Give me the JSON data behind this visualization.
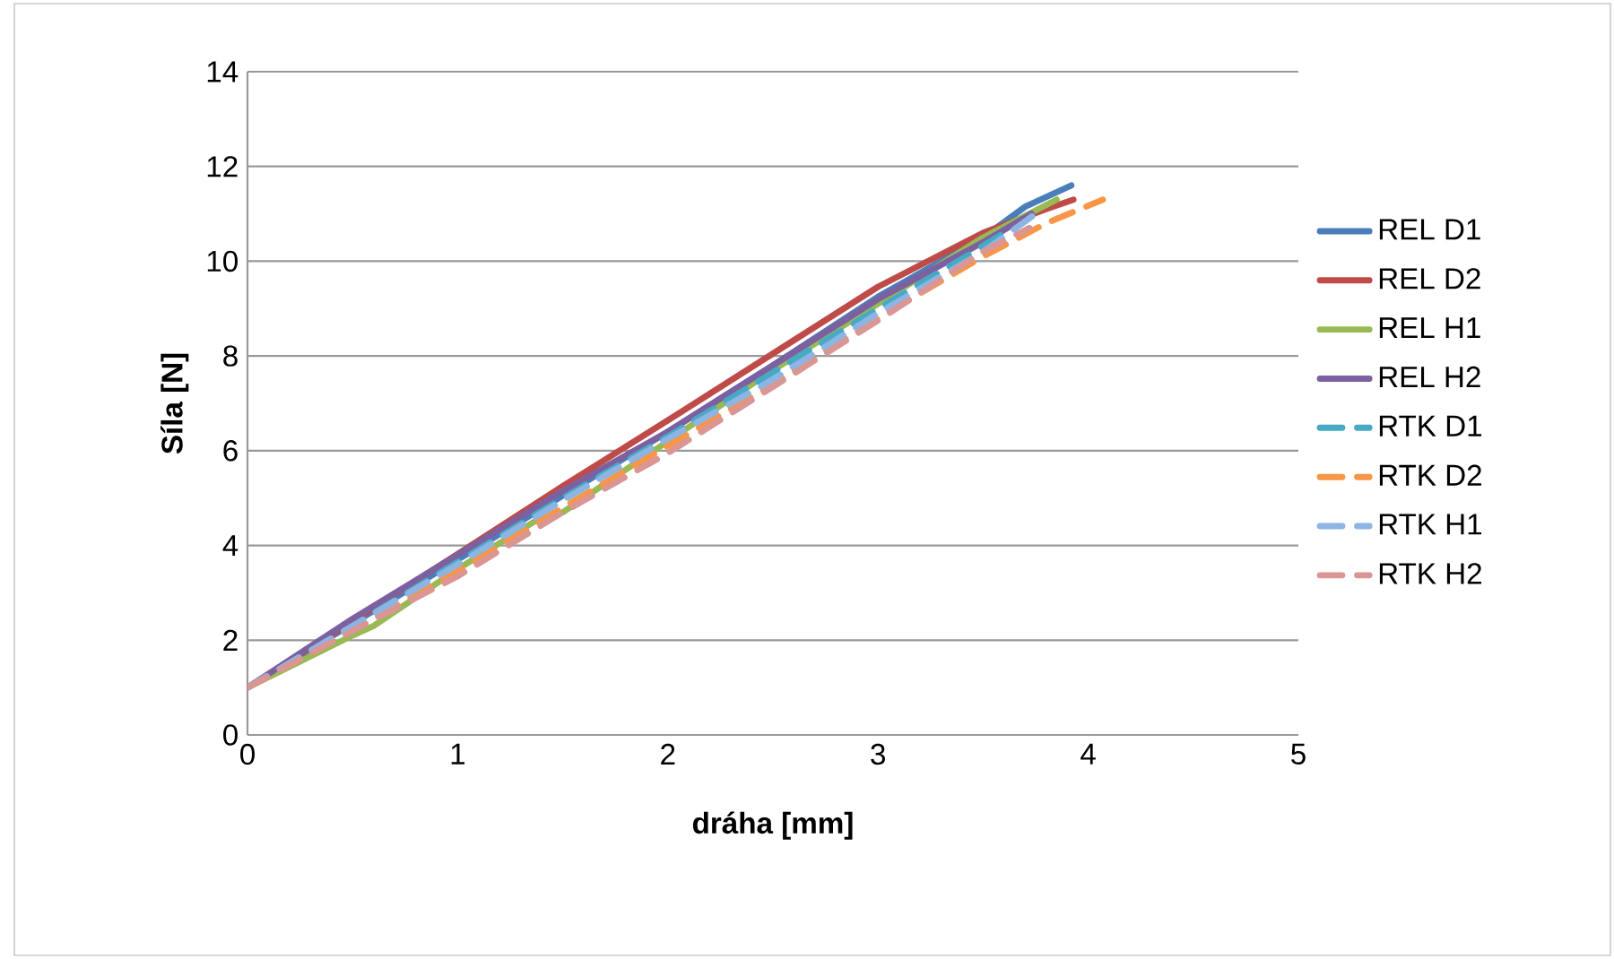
{
  "chart_data": {
    "type": "line",
    "xlabel": "dráha [mm]",
    "ylabel": "Síla [N]",
    "xlim": [
      0,
      5
    ],
    "ylim": [
      0,
      14
    ],
    "xticks": [
      0,
      1,
      2,
      3,
      4,
      5
    ],
    "yticks": [
      0,
      2,
      4,
      6,
      8,
      10,
      12,
      14
    ],
    "grid": "y",
    "legend": "right",
    "marker": "none",
    "series": [
      {
        "name": "REL D1",
        "color": "#4a7ebb",
        "line_style": "solid",
        "x": [
          0,
          0.5,
          1,
          1.5,
          2,
          2.5,
          3,
          3.5,
          3.7,
          3.92
        ],
        "values": [
          1,
          2.35,
          3.7,
          5.05,
          6.4,
          7.8,
          9.25,
          10.5,
          11.15,
          11.6
        ]
      },
      {
        "name": "REL D2",
        "color": "#be4b48",
        "line_style": "solid",
        "x": [
          0,
          0.5,
          1,
          1.5,
          2,
          2.5,
          3,
          3.5,
          3.8,
          3.93
        ],
        "values": [
          1,
          2.4,
          3.82,
          5.25,
          6.64,
          8.05,
          9.46,
          10.6,
          11.1,
          11.3
        ]
      },
      {
        "name": "REL H1",
        "color": "#98b954",
        "line_style": "solid",
        "x": [
          0,
          0.5,
          0.6,
          1,
          1.4,
          1.5,
          2,
          2.5,
          3,
          3.5,
          3.85
        ],
        "values": [
          1,
          2.1,
          2.3,
          3.5,
          4.6,
          4.7,
          6.2,
          7.7,
          9.1,
          10.5,
          11.3
        ]
      },
      {
        "name": "REL H2",
        "color": "#7d60a0",
        "line_style": "solid",
        "x": [
          0,
          0.5,
          1,
          1.5,
          2,
          2.5,
          3,
          3.5,
          3.73
        ],
        "values": [
          1,
          2.45,
          3.8,
          5.15,
          6.4,
          7.8,
          9.2,
          10.4,
          11.0
        ]
      },
      {
        "name": "RTK D1",
        "color": "#46aac5",
        "line_style": "dashed",
        "x": [
          0,
          0.5,
          1,
          1.5,
          2,
          2.5,
          3,
          3.4,
          3.6
        ],
        "values": [
          1,
          2.3,
          3.65,
          5.0,
          6.3,
          7.65,
          9.0,
          10.05,
          10.6
        ]
      },
      {
        "name": "RTK D2",
        "color": "#f79646",
        "line_style": "dashed",
        "x": [
          0,
          0.5,
          1,
          1.5,
          2,
          2.5,
          3,
          3.5,
          3.8,
          4.07
        ],
        "values": [
          1,
          2.2,
          3.45,
          4.8,
          6.1,
          7.4,
          8.8,
          10.1,
          10.8,
          11.3
        ]
      },
      {
        "name": "RTK H1",
        "color": "#8eb4e3",
        "line_style": "dashed",
        "x": [
          0,
          0.5,
          1,
          1.5,
          2,
          2.5,
          3,
          3.5,
          3.75
        ],
        "values": [
          1,
          2.3,
          3.6,
          4.95,
          6.25,
          7.5,
          8.9,
          10.2,
          11.0
        ]
      },
      {
        "name": "RTK H2",
        "color": "#d99694",
        "line_style": "dashed",
        "x": [
          0,
          0.5,
          1,
          1.5,
          2,
          2.5,
          3,
          3.5,
          3.72
        ],
        "values": [
          1,
          2.2,
          3.35,
          4.7,
          5.95,
          7.35,
          8.75,
          10.2,
          10.7
        ]
      }
    ]
  }
}
